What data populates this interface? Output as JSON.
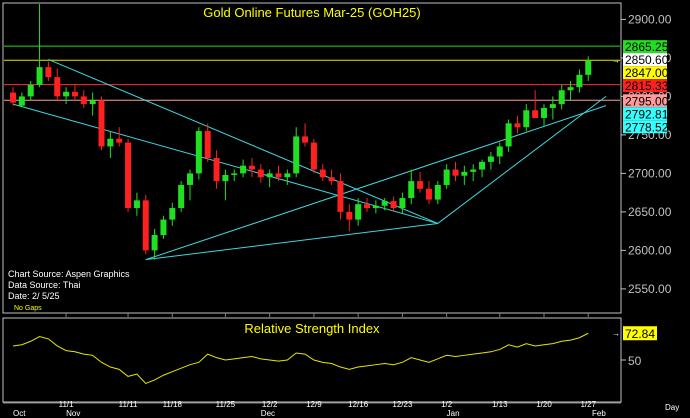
{
  "chart_data": {
    "type": "candlestick",
    "title": "Gold Online Futures Mar-25 (GOH25)",
    "info_lines": [
      "Chart Source: Aspen Graphics",
      "Data Source: Thai",
      "Date:  2/ 5/25"
    ],
    "no_gaps_label": "No Gaps",
    "price_ticks": [
      2900.0,
      2850.0,
      2800.0,
      2750.0,
      2700.0,
      2650.0,
      2600.0,
      2550.0
    ],
    "price_tick_labels": [
      "2900.00",
      "2850.00",
      "2800.00",
      "2750.00",
      "2700.00",
      "2650.00",
      "2600.00",
      "2550.00"
    ],
    "ylim": [
      2520,
      2920
    ],
    "price_markers": [
      {
        "label": "2865.25",
        "value": 2865.25,
        "bg": "#21e021",
        "fg": "#000000"
      },
      {
        "label": "2850.60",
        "value": 2850.6,
        "bg": "#ffffff",
        "fg": "#000000"
      },
      {
        "label": "2847.00",
        "value": 2847.0,
        "bg": "#ffff00",
        "fg": "#000000"
      },
      {
        "label": "2815.33",
        "value": 2815.33,
        "bg": "#ff2020",
        "fg": "#000000"
      },
      {
        "label": "2795.00",
        "value": 2795.0,
        "bg": "#ff9a9a",
        "fg": "#000000"
      },
      {
        "label": "2792.81",
        "value": 2792.81,
        "bg": "#33ffff",
        "fg": "#000000"
      },
      {
        "label": "2778.52",
        "value": 2778.52,
        "bg": "#33ffff",
        "fg": "#000000"
      }
    ],
    "horizontal_lines": [
      {
        "value": 2865.25,
        "color": "#21e021"
      },
      {
        "value": 2847.0,
        "color": "#e6e600"
      },
      {
        "value": 2815.33,
        "color": "#ff3030"
      },
      {
        "value": 2795.0,
        "color": "#ff9a9a"
      }
    ],
    "candles": [
      [
        2805,
        2812,
        2788,
        2792
      ],
      [
        2788,
        2805,
        2786,
        2800
      ],
      [
        2800,
        2820,
        2795,
        2815
      ],
      [
        2815,
        2848,
        2812,
        2838
      ],
      [
        2838,
        2845,
        2820,
        2825
      ],
      [
        2825,
        2836,
        2795,
        2800
      ],
      [
        2800,
        2812,
        2790,
        2806
      ],
      [
        2806,
        2816,
        2795,
        2800
      ],
      [
        2800,
        2808,
        2785,
        2790
      ],
      [
        2790,
        2805,
        2775,
        2795
      ],
      [
        2795,
        2800,
        2730,
        2735
      ],
      [
        2735,
        2755,
        2720,
        2745
      ],
      [
        2745,
        2760,
        2735,
        2740
      ],
      [
        2740,
        2745,
        2650,
        2655
      ],
      [
        2655,
        2675,
        2645,
        2665
      ],
      [
        2665,
        2672,
        2595,
        2600
      ],
      [
        2600,
        2628,
        2588,
        2620
      ],
      [
        2620,
        2645,
        2615,
        2640
      ],
      [
        2640,
        2662,
        2632,
        2655
      ],
      [
        2655,
        2690,
        2650,
        2685
      ],
      [
        2685,
        2705,
        2665,
        2700
      ],
      [
        2700,
        2760,
        2692,
        2755
      ],
      [
        2755,
        2765,
        2715,
        2720
      ],
      [
        2720,
        2730,
        2680,
        2690
      ],
      [
        2690,
        2705,
        2665,
        2698
      ],
      [
        2698,
        2705,
        2690,
        2700
      ],
      [
        2700,
        2718,
        2695,
        2710
      ],
      [
        2710,
        2720,
        2695,
        2705
      ],
      [
        2705,
        2712,
        2688,
        2695
      ],
      [
        2695,
        2705,
        2682,
        2700
      ],
      [
        2700,
        2710,
        2690,
        2695
      ],
      [
        2695,
        2705,
        2685,
        2700
      ],
      [
        2700,
        2760,
        2695,
        2748
      ],
      [
        2748,
        2765,
        2735,
        2740
      ],
      [
        2740,
        2745,
        2700,
        2705
      ],
      [
        2705,
        2712,
        2690,
        2695
      ],
      [
        2695,
        2705,
        2685,
        2690
      ],
      [
        2690,
        2700,
        2640,
        2650
      ],
      [
        2650,
        2660,
        2625,
        2640
      ],
      [
        2640,
        2668,
        2632,
        2660
      ],
      [
        2660,
        2668,
        2650,
        2655
      ],
      [
        2655,
        2665,
        2648,
        2658
      ],
      [
        2658,
        2668,
        2652,
        2664
      ],
      [
        2664,
        2670,
        2650,
        2655
      ],
      [
        2655,
        2675,
        2648,
        2668
      ],
      [
        2668,
        2705,
        2660,
        2690
      ],
      [
        2690,
        2702,
        2675,
        2680
      ],
      [
        2680,
        2690,
        2660,
        2666
      ],
      [
        2666,
        2690,
        2660,
        2685
      ],
      [
        2685,
        2712,
        2680,
        2705
      ],
      [
        2705,
        2715,
        2690,
        2697
      ],
      [
        2697,
        2710,
        2685,
        2702
      ],
      [
        2702,
        2712,
        2690,
        2705
      ],
      [
        2705,
        2718,
        2695,
        2715
      ],
      [
        2715,
        2728,
        2705,
        2722
      ],
      [
        2722,
        2740,
        2712,
        2735
      ],
      [
        2735,
        2770,
        2728,
        2765
      ],
      [
        2765,
        2775,
        2752,
        2760
      ],
      [
        2760,
        2790,
        2755,
        2782
      ],
      [
        2782,
        2808,
        2775,
        2772
      ],
      [
        2772,
        2790,
        2762,
        2785
      ],
      [
        2785,
        2800,
        2770,
        2790
      ],
      [
        2790,
        2815,
        2783,
        2808
      ],
      [
        2808,
        2820,
        2795,
        2812
      ],
      [
        2812,
        2835,
        2805,
        2828
      ],
      [
        2828,
        2852,
        2820,
        2846
      ]
    ],
    "trendlines": [
      {
        "from": [
          4,
          2848
        ],
        "to": [
          48,
          2635
        ],
        "color": "#3fd6e0"
      },
      {
        "from": [
          0,
          2790
        ],
        "to": [
          48,
          2635
        ],
        "color": "#3fd6e0"
      },
      {
        "from": [
          15,
          2588
        ],
        "to": [
          48,
          2635
        ],
        "color": "#3fd6e0"
      },
      {
        "from": [
          48,
          2635
        ],
        "to": [
          67,
          2800
        ],
        "color": "#3fd6e0"
      },
      {
        "from": [
          15,
          2588
        ],
        "to": [
          67,
          2788
        ],
        "color": "#3fd6e0"
      }
    ],
    "spike": {
      "index": 3,
      "value": 2920
    },
    "x_labels_top": [
      {
        "index": 6,
        "label": "11/1"
      },
      {
        "index": 13,
        "label": "11/11"
      },
      {
        "index": 18,
        "label": "11/18"
      },
      {
        "index": 24,
        "label": "11/25"
      },
      {
        "index": 29,
        "label": "12/2"
      },
      {
        "index": 34,
        "label": "12/9"
      },
      {
        "index": 39,
        "label": "12/16"
      },
      {
        "index": 44,
        "label": "12/23"
      },
      {
        "index": 49,
        "label": "1/2"
      },
      {
        "index": 55,
        "label": "1/13"
      },
      {
        "index": 60,
        "label": "1/20"
      },
      {
        "index": 65,
        "label": "1/27"
      }
    ],
    "x_labels_bottom": [
      {
        "index": 0,
        "label": "Oct"
      },
      {
        "index": 6,
        "label": "Nov"
      },
      {
        "index": 28,
        "label": "Dec"
      },
      {
        "index": 49,
        "label": "Jan"
      },
      {
        "index": 72,
        "label": "Feb"
      }
    ],
    "rsi": {
      "title": "Relative Strength Index",
      "current_label": "72.84",
      "current_value": 72.84,
      "tick_label": "50",
      "tick_value": 50,
      "ylim": [
        15,
        85
      ],
      "values": [
        62,
        63,
        66,
        70,
        68,
        62,
        58,
        57,
        55,
        54,
        48,
        44,
        42,
        36,
        38,
        30,
        33,
        37,
        40,
        43,
        46,
        48,
        55,
        52,
        50,
        51,
        52,
        53,
        51,
        50,
        49,
        50,
        56,
        55,
        50,
        48,
        47,
        44,
        42,
        44,
        45,
        46,
        47,
        46,
        48,
        52,
        50,
        48,
        51,
        54,
        53,
        54,
        55,
        56,
        57,
        59,
        63,
        61,
        64,
        62,
        63,
        64,
        66,
        67,
        69,
        72.84
      ]
    },
    "period_label": "Day",
    "arrow_glyph": "→"
  }
}
